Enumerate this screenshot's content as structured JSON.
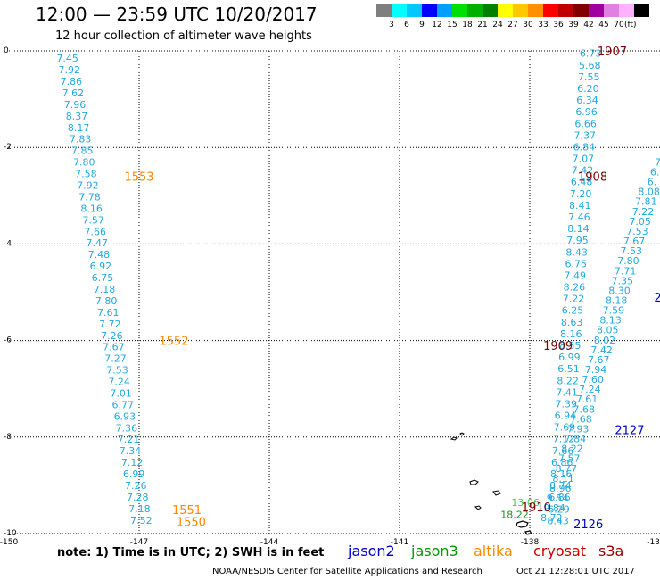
{
  "header": {
    "title": "12:00 — 23:59 UTC 10/20/2017",
    "subtitle": "12 hour collection of altimeter wave heights"
  },
  "colorbar": {
    "colors": [
      "#7f7f7f",
      "#00ffff",
      "#00c8ff",
      "#0000ff",
      "#00a0ff",
      "#00e000",
      "#00b000",
      "#008000",
      "#ffff00",
      "#ffc800",
      "#ff9000",
      "#ff0000",
      "#c00000",
      "#800000",
      "#a000a0",
      "#e080e0",
      "#ffb0ff",
      "#000000"
    ],
    "ticks": [
      "3",
      "6",
      "9",
      "12",
      "15",
      "18",
      "21",
      "24",
      "27",
      "30",
      "33",
      "36",
      "39",
      "42",
      "45",
      "70"
    ],
    "unit": "(ft)"
  },
  "axes": {
    "x_ticks": [
      {
        "lon": -150,
        "label": "-150"
      },
      {
        "lon": -147,
        "label": "-147"
      },
      {
        "lon": -144,
        "label": "-144"
      },
      {
        "lon": -141,
        "label": "-141"
      },
      {
        "lon": -138,
        "label": "-138"
      },
      {
        "lon": -135,
        "label": "-13"
      }
    ],
    "y_ticks": [
      {
        "lat": 0,
        "label": "0"
      },
      {
        "lat": -2,
        "label": "-2"
      },
      {
        "lat": -4,
        "label": "-4"
      },
      {
        "lat": -6,
        "label": "-6"
      },
      {
        "lat": -8,
        "label": "-8"
      },
      {
        "lat": -10,
        "label": "-10"
      }
    ],
    "lon_range": [
      -150,
      -135
    ],
    "lat_range": [
      -10,
      0
    ]
  },
  "tracks": [
    {
      "color": "#22aadd",
      "start": {
        "lon": -148.65,
        "lat": -0.15
      },
      "end": {
        "lon": -146.95,
        "lat": -9.72
      },
      "values": [
        "7.45",
        "7.92",
        "7.86",
        "7.62",
        "7.96",
        "8.37",
        "8.17",
        "7.83",
        "7.85",
        "7.80",
        "7.58",
        "7.92",
        "7.78",
        "8.16",
        "7.57",
        "7.66",
        "7.47",
        "7.48",
        "6.92",
        "6.75",
        "7.18",
        "7.80",
        "7.61",
        "7.72",
        "7.26",
        "7.67",
        "7.27",
        "7.53",
        "7.24",
        "7.01",
        "6.77",
        "6.93",
        "7.36",
        "7.21",
        "7.34",
        "7.12",
        "6.99",
        "7.26",
        "7.28",
        "7.18",
        "7.52"
      ]
    },
    {
      "color": "#22aadd",
      "start": {
        "lon": -136.6,
        "lat": -0.05
      },
      "end": {
        "lon": -137.35,
        "lat": -9.73
      },
      "values": [
        "6.73",
        "5.68",
        "7.55",
        "6.20",
        "6.34",
        "6.96",
        "6.66",
        "7.37",
        "6.84",
        "7.07",
        "7.42",
        "6.48",
        "7.20",
        "8.41",
        "7.46",
        "8.14",
        "7.95",
        "8.43",
        "6.75",
        "7.49",
        "8.26",
        "7.22",
        "6.25",
        "8.63",
        "8.16",
        "8.55",
        "6.99",
        "6.51",
        "8.22",
        "7.41",
        "7.39",
        "6.94",
        "7.69",
        "7.12",
        "7.66",
        "6.86",
        "8.16",
        "8.74",
        "6.86",
        "6.29",
        "8.43"
      ]
    },
    {
      "color": "#22aadd",
      "start": {
        "lon": -135.05,
        "lat": -2.3
      },
      "end": {
        "lon": -137.5,
        "lat": -9.67
      },
      "values": [
        "7",
        "6.",
        "6.",
        "8.08",
        "7.81",
        "7.22",
        "7.05",
        "7.53",
        "7.67",
        "7.53",
        "7.80",
        "7.71",
        "7.35",
        "8.30",
        "8.18",
        "7.59",
        "8.13",
        "8.05",
        "8.02",
        "7.42",
        "7.67",
        "7.94",
        "7.60",
        "7.24",
        "7.61",
        "7.68",
        "7.68",
        "7.93",
        "7.84",
        "8.22",
        "7.57",
        "8.77",
        "8.11",
        "8.96",
        "9.54",
        "9.84",
        "8.72"
      ]
    }
  ],
  "extra_values": [
    {
      "text": "13.06",
      "lon": -138.1,
      "lat": -9.35,
      "color": "#44cc44"
    },
    {
      "text": "18.22",
      "lon": -138.35,
      "lat": -9.6,
      "color": "#119911"
    }
  ],
  "pass_labels": [
    {
      "text": "1907",
      "lon": -136.1,
      "lat": 0.0,
      "color": "#800000"
    },
    {
      "text": "1908",
      "lon": -136.55,
      "lat": -2.6,
      "color": "#800000"
    },
    {
      "text": "1909",
      "lon": -137.35,
      "lat": -6.1,
      "color": "#800000"
    },
    {
      "text": "1910",
      "lon": -137.85,
      "lat": -9.45,
      "color": "#800000"
    },
    {
      "text": "1553",
      "lon": -147.0,
      "lat": -2.6,
      "color": "#ff8800"
    },
    {
      "text": "1552",
      "lon": -146.2,
      "lat": -6.0,
      "color": "#ff8800"
    },
    {
      "text": "1551",
      "lon": -145.9,
      "lat": -9.5,
      "color": "#ff8800"
    },
    {
      "text": "1550",
      "lon": -145.8,
      "lat": -9.75,
      "color": "#ff8800"
    },
    {
      "text": "2127",
      "lon": -135.7,
      "lat": -7.85,
      "color": "#0000cc"
    },
    {
      "text": "2126",
      "lon": -136.65,
      "lat": -9.8,
      "color": "#0000cc"
    },
    {
      "text": "2",
      "lon": -135.05,
      "lat": -5.1,
      "color": "#0000cc"
    }
  ],
  "footer": {
    "note": "note: 1) Time is in UTC; 2) SWH is in feet",
    "satellites": [
      {
        "name": "jason2",
        "color": "#0000cc"
      },
      {
        "name": "jason3",
        "color": "#009900"
      },
      {
        "name": "altika",
        "color": "#ff8800"
      },
      {
        "name": "cryosat",
        "color": "#cc0000"
      },
      {
        "name": "s3a",
        "color": "#990000"
      }
    ],
    "credit": "NOAA/NESDIS Center for Satellite Applications and Research",
    "timestamp": "Oct 21 12:28:01 UTC 2017"
  }
}
